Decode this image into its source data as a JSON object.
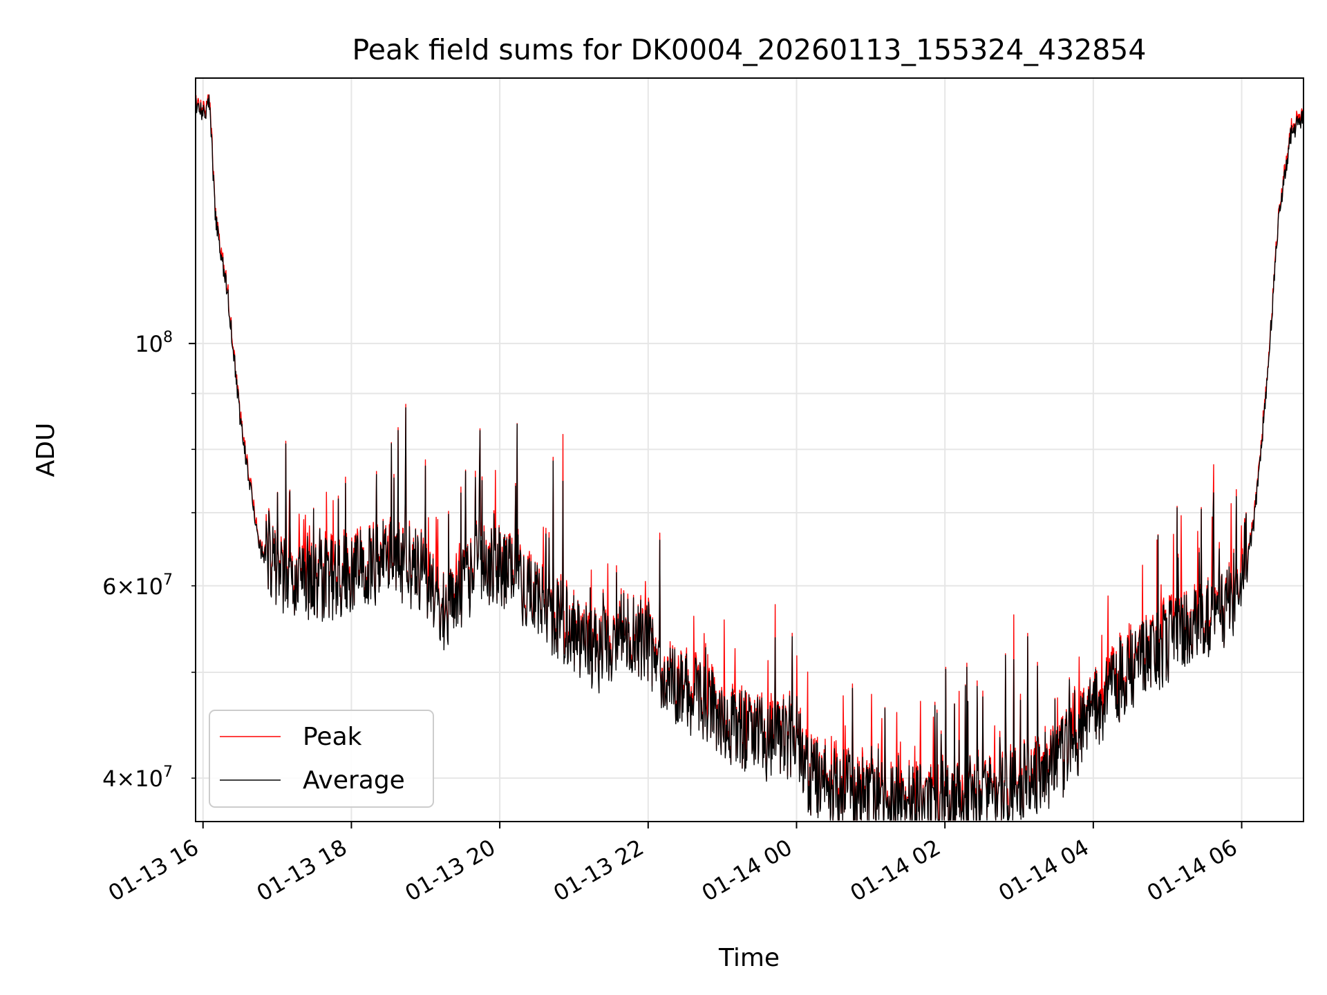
{
  "chart_data": {
    "type": "line",
    "title": "Peak field sums for DK0004_20260113_155324_432854",
    "xlabel": "Time",
    "ylabel": "ADU",
    "yscale": "log",
    "grid": true,
    "legend_position": "lower-left",
    "xlim": [
      "2026-01-13 15:54",
      "2026-01-14 06:50"
    ],
    "ylim": [
      36500000,
      175000000
    ],
    "x_ticks": [
      {
        "value": "2026-01-13 16:00",
        "label": "01-13 16"
      },
      {
        "value": "2026-01-13 18:00",
        "label": "01-13 18"
      },
      {
        "value": "2026-01-13 20:00",
        "label": "01-13 20"
      },
      {
        "value": "2026-01-13 22:00",
        "label": "01-13 22"
      },
      {
        "value": "2026-01-14 00:00",
        "label": "01-14 00"
      },
      {
        "value": "2026-01-14 02:00",
        "label": "01-14 02"
      },
      {
        "value": "2026-01-14 04:00",
        "label": "01-14 04"
      },
      {
        "value": "2026-01-14 06:00",
        "label": "01-14 06"
      }
    ],
    "y_major_ticks": [
      {
        "value": 100000000,
        "base": "10",
        "exp": "8"
      }
    ],
    "y_minor_ticks": [
      {
        "value": 40000000,
        "coef": "4",
        "base": "10",
        "exp": "7"
      },
      {
        "value": 50000000
      },
      {
        "value": 60000000,
        "coef": "6",
        "base": "10",
        "exp": "7"
      },
      {
        "value": 70000000
      },
      {
        "value": 80000000
      },
      {
        "value": 90000000
      }
    ],
    "series": [
      {
        "name": "Peak",
        "color": "#ff0000"
      },
      {
        "name": "Average",
        "color": "#000000"
      }
    ],
    "envelope": {
      "time": [
        "2026-01-13 15:54",
        "2026-01-13 16:02",
        "2026-01-13 16:05",
        "2026-01-13 16:10",
        "2026-01-13 16:20",
        "2026-01-13 16:30",
        "2026-01-13 16:45",
        "2026-01-13 17:00",
        "2026-01-13 17:30",
        "2026-01-13 18:00",
        "2026-01-13 18:30",
        "2026-01-13 19:00",
        "2026-01-13 19:15",
        "2026-01-13 19:40",
        "2026-01-13 20:00",
        "2026-01-13 20:30",
        "2026-01-13 21:00",
        "2026-01-13 21:20",
        "2026-01-13 21:40",
        "2026-01-13 22:00",
        "2026-01-13 22:15",
        "2026-01-13 22:30",
        "2026-01-13 23:00",
        "2026-01-13 23:30",
        "2026-01-13 23:45",
        "2026-01-14 00:00",
        "2026-01-14 00:10",
        "2026-01-14 00:30",
        "2026-01-14 00:45",
        "2026-01-14 01:00",
        "2026-01-14 01:30",
        "2026-01-14 02:00",
        "2026-01-14 02:30",
        "2026-01-14 03:00",
        "2026-01-14 03:30",
        "2026-01-14 04:00",
        "2026-01-14 04:30",
        "2026-01-14 05:00",
        "2026-01-14 05:30",
        "2026-01-14 05:50",
        "2026-01-14 06:00",
        "2026-01-14 06:10",
        "2026-01-14 06:20",
        "2026-01-14 06:30",
        "2026-01-14 06:40",
        "2026-01-14 06:50"
      ],
      "baseline": [
        165000000,
        160000000,
        168000000,
        130000000,
        110000000,
        85000000,
        65000000,
        60000000,
        59000000,
        60000000,
        62000000,
        60000000,
        55000000,
        60000000,
        61000000,
        57000000,
        53000000,
        51000000,
        53000000,
        52000000,
        48000000,
        47000000,
        44000000,
        42500000,
        42000000,
        43000000,
        39000000,
        38500000,
        38000000,
        37200000,
        37000000,
        37000000,
        37500000,
        38500000,
        40000000,
        45000000,
        49000000,
        52000000,
        54000000,
        56000000,
        60000000,
        68000000,
        90000000,
        130000000,
        155000000,
        160000000
      ]
    }
  }
}
